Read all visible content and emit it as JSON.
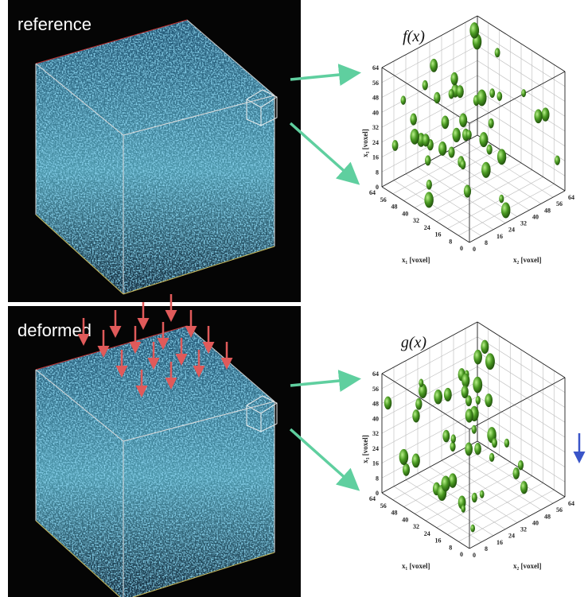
{
  "panels": [
    {
      "label": "reference",
      "plot": {
        "title": "f(x)",
        "x1_label": "x₁ [voxel]",
        "x2_label": "x₂ [voxel]",
        "x3_label": "x₃ [voxel]",
        "ticks": [
          0,
          8,
          16,
          24,
          32,
          40,
          48,
          56,
          64
        ]
      }
    },
    {
      "label": "deformed",
      "plot": {
        "title": "g(x)",
        "x1_label": "x₁ [voxel]",
        "x2_label": "x₂ [voxel]",
        "x3_label": "x₃ [voxel]",
        "ticks": [
          0,
          8,
          16,
          24,
          32,
          40,
          48,
          56,
          64
        ]
      }
    }
  ]
}
